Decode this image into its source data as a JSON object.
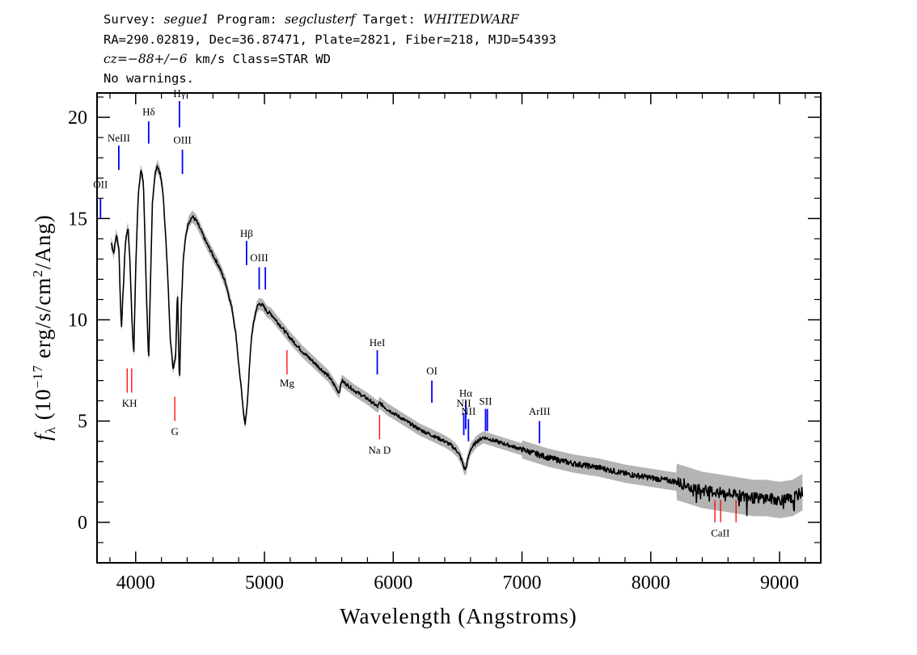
{
  "header": {
    "line1": {
      "survey_label": "Survey: ",
      "survey": "segue1",
      "program_label": " Program: ",
      "program": "segclusterf",
      "target_label": " Target: ",
      "target": "WHITEDWARF"
    },
    "line2": "RA=290.02819, Dec=36.87471, Plate=2821, Fiber=218, MJD=54393",
    "line3": {
      "cz": "cz",
      "value": "=−88+/−6",
      "rest": " km/s Class=STAR WD"
    },
    "line4": "No warnings."
  },
  "chart_data": {
    "type": "line",
    "xlabel": "Wavelength (Angstroms)",
    "ylabel_prefix": "f",
    "ylabel_sub": "λ",
    "ylabel_rest": " (10",
    "ylabel_exp": "−17",
    "ylabel_unit": " erg/s/cm",
    "ylabel_exp2": "2",
    "ylabel_tail": "/Ang)",
    "xlim": [
      3700,
      9320
    ],
    "ylim": [
      -2,
      21.2
    ],
    "x_ticks": [
      4000,
      5000,
      6000,
      7000,
      8000,
      9000
    ],
    "x_tick_labels": [
      "4000",
      "5000",
      "6000",
      "7000",
      "8000",
      "9000"
    ],
    "y_ticks": [
      0,
      5,
      10,
      15,
      20
    ],
    "y_tick_labels": [
      "0",
      "5",
      "10",
      "15",
      "20"
    ],
    "colors": {
      "spectrum": "#000000",
      "error": "#b4b4b4",
      "emission": "#0000ff",
      "absorption": "#ff0000"
    },
    "series": [
      {
        "x": [
          3810,
          3830,
          3850,
          3870,
          3880,
          3889,
          3900,
          3920,
          3940,
          3955,
          3970,
          3985,
          4000,
          4020,
          4040,
          4060,
          4070,
          4085,
          4101,
          4115,
          4130,
          4150,
          4170,
          4190,
          4210,
          4230,
          4250,
          4270,
          4290,
          4310,
          4325,
          4340,
          4355,
          4370,
          4390,
          4410,
          4440,
          4470,
          4500,
          4550,
          4600,
          4650,
          4700,
          4750,
          4780,
          4800,
          4820,
          4835,
          4850,
          4861,
          4872,
          4885,
          4900,
          4920,
          4940,
          4960,
          4990,
          5020,
          5050,
          5100,
          5150,
          5200,
          5300,
          5400,
          5500,
          5580,
          5600,
          5700,
          5800,
          5880,
          5895,
          5950,
          6000,
          6100,
          6200,
          6300,
          6400,
          6450,
          6500,
          6530,
          6550,
          6563,
          6575,
          6600,
          6650,
          6700,
          6800,
          7000,
          7200,
          7400,
          7600,
          7800,
          8000,
          8200,
          8300,
          8400,
          8500,
          8600,
          8700,
          8800,
          8900,
          9000,
          9100,
          9180
        ],
        "y": [
          13.8,
          13.3,
          14.2,
          13.5,
          11.2,
          9.6,
          11.0,
          13.8,
          14.6,
          13.0,
          10.2,
          8.2,
          12.5,
          16.2,
          17.4,
          16.8,
          14.5,
          11.0,
          7.9,
          11.8,
          15.8,
          17.2,
          17.6,
          17.2,
          16.4,
          14.5,
          12.0,
          9.0,
          7.6,
          8.2,
          11.5,
          6.8,
          10.8,
          13.0,
          14.2,
          14.8,
          15.1,
          14.9,
          14.5,
          13.8,
          13.2,
          12.6,
          11.8,
          10.5,
          9.2,
          7.8,
          6.6,
          5.5,
          4.9,
          5.4,
          6.4,
          7.8,
          9.2,
          10.0,
          10.6,
          10.8,
          10.7,
          10.4,
          10.3,
          9.9,
          9.5,
          9.1,
          8.4,
          7.8,
          7.2,
          6.4,
          7.0,
          6.5,
          6.1,
          5.7,
          5.9,
          5.6,
          5.4,
          5.0,
          4.6,
          4.3,
          4.0,
          3.8,
          3.5,
          3.1,
          2.7,
          2.6,
          3.0,
          3.6,
          4.0,
          4.2,
          4.0,
          3.6,
          3.2,
          2.9,
          2.7,
          2.4,
          2.2,
          2.0,
          1.8,
          1.6,
          1.5,
          1.4,
          1.3,
          1.2,
          1.2,
          1.1,
          1.2,
          1.5
        ]
      }
    ],
    "emission_lines": [
      {
        "label": "OII",
        "x": 3727,
        "y0": 15.0,
        "y1": 16.0,
        "label_y": 16.5
      },
      {
        "label": "NeIII",
        "x": 3869,
        "y0": 17.4,
        "y1": 18.6,
        "label_y": 18.8
      },
      {
        "label": "Hδ",
        "x": 4101,
        "y0": 18.7,
        "y1": 19.8,
        "label_y": 20.1
      },
      {
        "label": "Hγ",
        "x": 4340,
        "y0": 19.5,
        "y1": 20.8,
        "label_y": 21.0
      },
      {
        "label": "OIII",
        "x": 4363,
        "y0": 17.2,
        "y1": 18.4,
        "label_y": 18.7
      },
      {
        "label": "Hβ",
        "x": 4861,
        "y0": 12.7,
        "y1": 13.9,
        "label_y": 14.1
      },
      {
        "label": "OIII",
        "x": 4959,
        "y0": 11.5,
        "y1": 12.6,
        "label_y": 12.9
      },
      {
        "label": "",
        "x": 5007,
        "y0": 11.5,
        "y1": 12.6,
        "label_y": 12.9
      },
      {
        "label": "HeI",
        "x": 5876,
        "y0": 7.3,
        "y1": 8.5,
        "label_y": 8.7
      },
      {
        "label": "OI",
        "x": 6300,
        "y0": 5.9,
        "y1": 7.0,
        "label_y": 7.3
      },
      {
        "label": "NII",
        "x": 6548,
        "y0": 4.3,
        "y1": 5.4,
        "label_y": 5.7
      },
      {
        "label": "Hα",
        "x": 6563,
        "y0": 4.6,
        "y1": 6.0,
        "label_y": 6.2
      },
      {
        "label": "NII",
        "x": 6584,
        "y0": 4.0,
        "y1": 5.1,
        "label_y": 5.3
      },
      {
        "label": "SII",
        "x": 6717,
        "y0": 4.5,
        "y1": 5.6,
        "label_y": 5.8
      },
      {
        "label": "",
        "x": 6731,
        "y0": 4.5,
        "y1": 5.6,
        "label_y": 5.8
      },
      {
        "label": "ArIII",
        "x": 7136,
        "y0": 3.9,
        "y1": 5.0,
        "label_y": 5.3
      }
    ],
    "absorption_lines": [
      {
        "label": "KH",
        "x": 3934,
        "y0": 6.4,
        "y1": 7.6,
        "label_y": 5.7,
        "label_x": 3952
      },
      {
        "label": "",
        "x": 3969,
        "y0": 6.4,
        "y1": 7.6,
        "label_y": 5.7,
        "label_x": 3952
      },
      {
        "label": "G",
        "x": 4304,
        "y0": 5.0,
        "y1": 6.2,
        "label_y": 4.3,
        "label_x": 4304
      },
      {
        "label": "Mg",
        "x": 5175,
        "y0": 7.3,
        "y1": 8.5,
        "label_y": 6.7,
        "label_x": 5175
      },
      {
        "label": "Na D",
        "x": 5894,
        "y0": 4.1,
        "y1": 5.3,
        "label_y": 3.4,
        "label_x": 5894
      },
      {
        "label": "CaII",
        "x": 8498,
        "y0": 0.0,
        "y1": 1.1,
        "label_y": -0.7,
        "label_x": 8540
      },
      {
        "label": "",
        "x": 8542,
        "y0": 0.0,
        "y1": 1.1,
        "label_y": -0.7,
        "label_x": 8540
      },
      {
        "label": "",
        "x": 8662,
        "y0": 0.0,
        "y1": 1.1,
        "label_y": -0.7,
        "label_x": 8540
      }
    ]
  }
}
